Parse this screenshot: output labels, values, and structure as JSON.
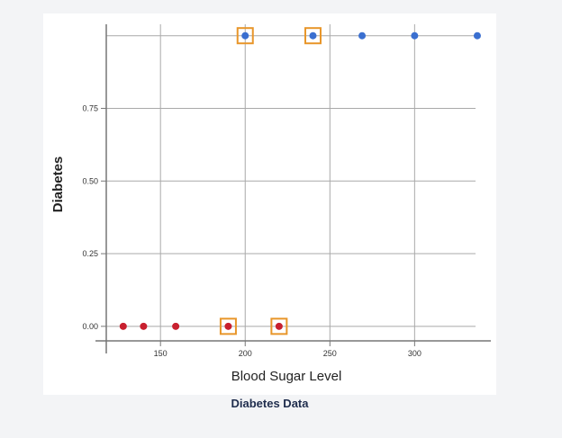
{
  "caption": "Diabetes Data",
  "chart_data": {
    "type": "scatter",
    "title": "",
    "xlabel": "Blood Sugar Level",
    "ylabel": "Diabetes",
    "xlim": [
      118,
      345
    ],
    "ylim": [
      -0.05,
      1.03
    ],
    "x_ticks": [
      150,
      200,
      250,
      300
    ],
    "y_ticks": [
      0.0,
      0.25,
      0.5,
      0.75
    ],
    "x_tick_labels": [
      "150",
      "200",
      "250",
      "300"
    ],
    "y_tick_labels": [
      "0.00",
      "0.25",
      "0.50",
      "0.75"
    ],
    "grid": true,
    "series": [
      {
        "color": "#c8202f",
        "points": [
          {
            "x": 128,
            "y": 0
          },
          {
            "x": 140,
            "y": 0
          },
          {
            "x": 159,
            "y": 0
          },
          {
            "x": 190,
            "y": 0,
            "highlighted": true
          },
          {
            "x": 220,
            "y": 0,
            "highlighted": true
          }
        ]
      },
      {
        "color": "#3a6fd0",
        "points": [
          {
            "x": 200,
            "y": 1,
            "highlighted": true
          },
          {
            "x": 240,
            "y": 1,
            "highlighted": true
          },
          {
            "x": 269,
            "y": 1
          },
          {
            "x": 300,
            "y": 1
          },
          {
            "x": 337,
            "y": 1
          }
        ]
      }
    ],
    "highlight_color": "#e8962a"
  }
}
